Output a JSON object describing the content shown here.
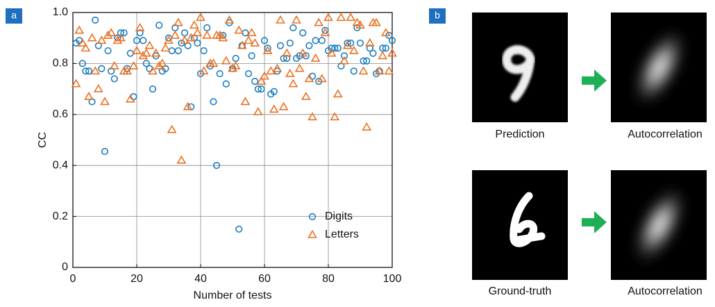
{
  "panel_labels": [
    "a",
    "b"
  ],
  "chart_data": {
    "type": "scatter",
    "xlabel": "Number of tests",
    "ylabel": "CC",
    "x": [
      1,
      2,
      3,
      4,
      5,
      6,
      7,
      8,
      9,
      10,
      11,
      12,
      13,
      14,
      15,
      16,
      17,
      18,
      19,
      20,
      21,
      22,
      23,
      24,
      25,
      26,
      27,
      28,
      29,
      30,
      31,
      32,
      33,
      34,
      35,
      36,
      37,
      38,
      39,
      40,
      41,
      42,
      43,
      44,
      45,
      46,
      47,
      48,
      49,
      50,
      51,
      52,
      53,
      54,
      55,
      56,
      57,
      58,
      59,
      60,
      61,
      62,
      63,
      64,
      65,
      66,
      67,
      68,
      69,
      70,
      71,
      72,
      73,
      74,
      75,
      76,
      77,
      78,
      79,
      80,
      81,
      82,
      83,
      84,
      85,
      86,
      87,
      88,
      89,
      90,
      91,
      92,
      93,
      94,
      95,
      96,
      97,
      98,
      99,
      100
    ],
    "series": [
      {
        "name": "Digits",
        "color": "#1a7dc0",
        "marker": "circle",
        "values": [
          0.88,
          0.89,
          0.8,
          0.77,
          0.77,
          0.65,
          0.97,
          0.87,
          0.78,
          0.455,
          0.85,
          0.77,
          0.74,
          0.9,
          0.92,
          0.92,
          0.78,
          0.84,
          0.67,
          0.89,
          0.92,
          0.89,
          0.8,
          0.78,
          0.7,
          0.83,
          0.95,
          0.77,
          0.78,
          0.9,
          0.85,
          0.94,
          0.85,
          0.88,
          0.92,
          0.87,
          0.63,
          0.9,
          0.88,
          0.76,
          0.85,
          0.94,
          0.79,
          0.65,
          0.4,
          0.76,
          0.91,
          0.72,
          0.96,
          0.78,
          0.82,
          0.15,
          0.87,
          0.92,
          0.76,
          0.83,
          0.73,
          0.7,
          0.7,
          0.89,
          0.86,
          0.68,
          0.69,
          0.77,
          0.87,
          0.82,
          0.82,
          0.88,
          0.94,
          0.82,
          0.83,
          0.92,
          0.83,
          0.87,
          0.75,
          0.89,
          0.73,
          0.89,
          0.93,
          0.85,
          0.86,
          0.86,
          0.86,
          0.79,
          0.83,
          0.88,
          0.88,
          0.77,
          0.94,
          0.88,
          0.81,
          0.81,
          0.86,
          0.84,
          0.76,
          0.77,
          0.86,
          0.86,
          0.91,
          0.89
        ]
      },
      {
        "name": "Letters",
        "color": "#ea7021",
        "marker": "triangle",
        "values": [
          0.72,
          0.93,
          0.88,
          0.86,
          0.67,
          0.9,
          0.77,
          0.7,
          0.89,
          0.65,
          0.91,
          0.92,
          0.79,
          0.89,
          0.9,
          0.77,
          0.77,
          0.66,
          0.79,
          0.85,
          0.94,
          0.83,
          0.84,
          0.87,
          0.77,
          0.84,
          0.79,
          0.8,
          0.86,
          0.89,
          0.54,
          0.91,
          0.96,
          0.42,
          0.89,
          0.63,
          0.9,
          0.95,
          0.92,
          0.98,
          0.77,
          0.91,
          0.8,
          0.8,
          0.91,
          0.91,
          0.9,
          0.81,
          0.97,
          0.78,
          0.79,
          0.93,
          0.87,
          0.65,
          0.89,
          0.92,
          0.88,
          0.61,
          0.73,
          0.75,
          0.85,
          0.77,
          0.62,
          0.78,
          0.97,
          0.63,
          0.84,
          0.76,
          0.72,
          0.97,
          0.78,
          0.84,
          0.67,
          0.74,
          0.59,
          0.82,
          0.96,
          0.74,
          0.92,
          0.98,
          0.84,
          0.59,
          0.68,
          0.98,
          0.81,
          0.87,
          0.98,
          0.85,
          0.96,
          0.95,
          0.77,
          0.55,
          0.88,
          0.96,
          0.96,
          0.77,
          0.83,
          0.92,
          0.77,
          0.84
        ]
      }
    ],
    "xlim": [
      0,
      100
    ],
    "xticks": [
      0,
      20,
      40,
      60,
      80,
      100
    ],
    "ylim": [
      0,
      1
    ],
    "yticks": [
      0,
      0.2,
      0.4,
      0.6,
      0.8,
      {
        "value": 1,
        "label": "1.0"
      }
    ],
    "grid": true,
    "legend": "lower right"
  },
  "image_captions": [
    "Prediction",
    "Autocorrelation",
    "Ground-truth",
    "Autocorrelation"
  ]
}
